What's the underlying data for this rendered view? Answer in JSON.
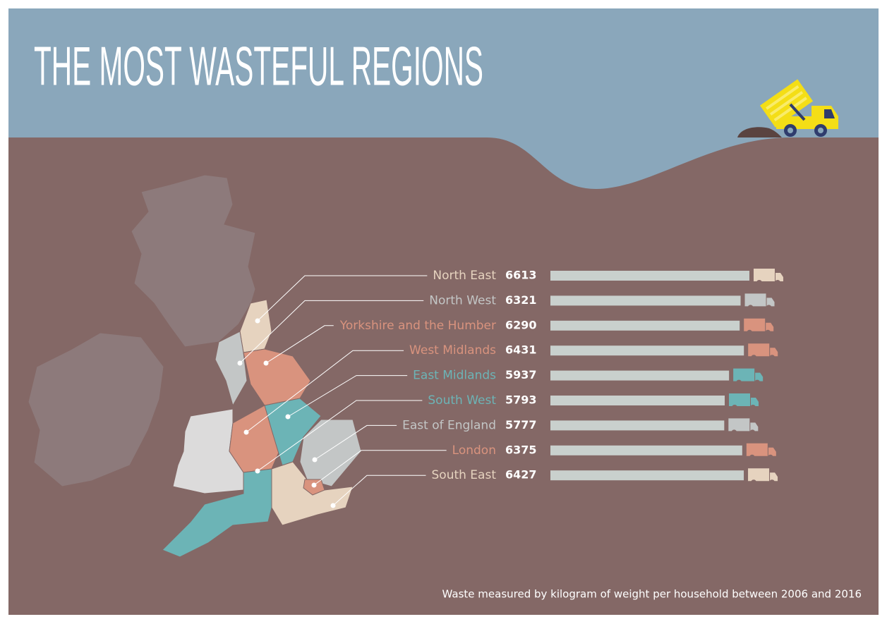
{
  "chart_data": {
    "type": "bar",
    "title": "THE MOST WASTEFUL REGIONS",
    "categories": [
      "North East",
      "North West",
      "Yorkshire and the Humber",
      "West Midlands",
      "East Midlands",
      "South West",
      "East of England",
      "London",
      "South East"
    ],
    "values": [
      6613,
      6321,
      6290,
      6431,
      5937,
      5793,
      5777,
      6375,
      6427
    ],
    "colors": [
      "#e6d3bf",
      "#c3c6c6",
      "#d9937e",
      "#d9937e",
      "#6cb4b6",
      "#6cb4b6",
      "#c3c6c6",
      "#d9937e",
      "#e6d3bf"
    ],
    "bar_color": "#c9d0cd",
    "note": "Waste measured by kilogram of weight per household between 2006 and 2016"
  }
}
